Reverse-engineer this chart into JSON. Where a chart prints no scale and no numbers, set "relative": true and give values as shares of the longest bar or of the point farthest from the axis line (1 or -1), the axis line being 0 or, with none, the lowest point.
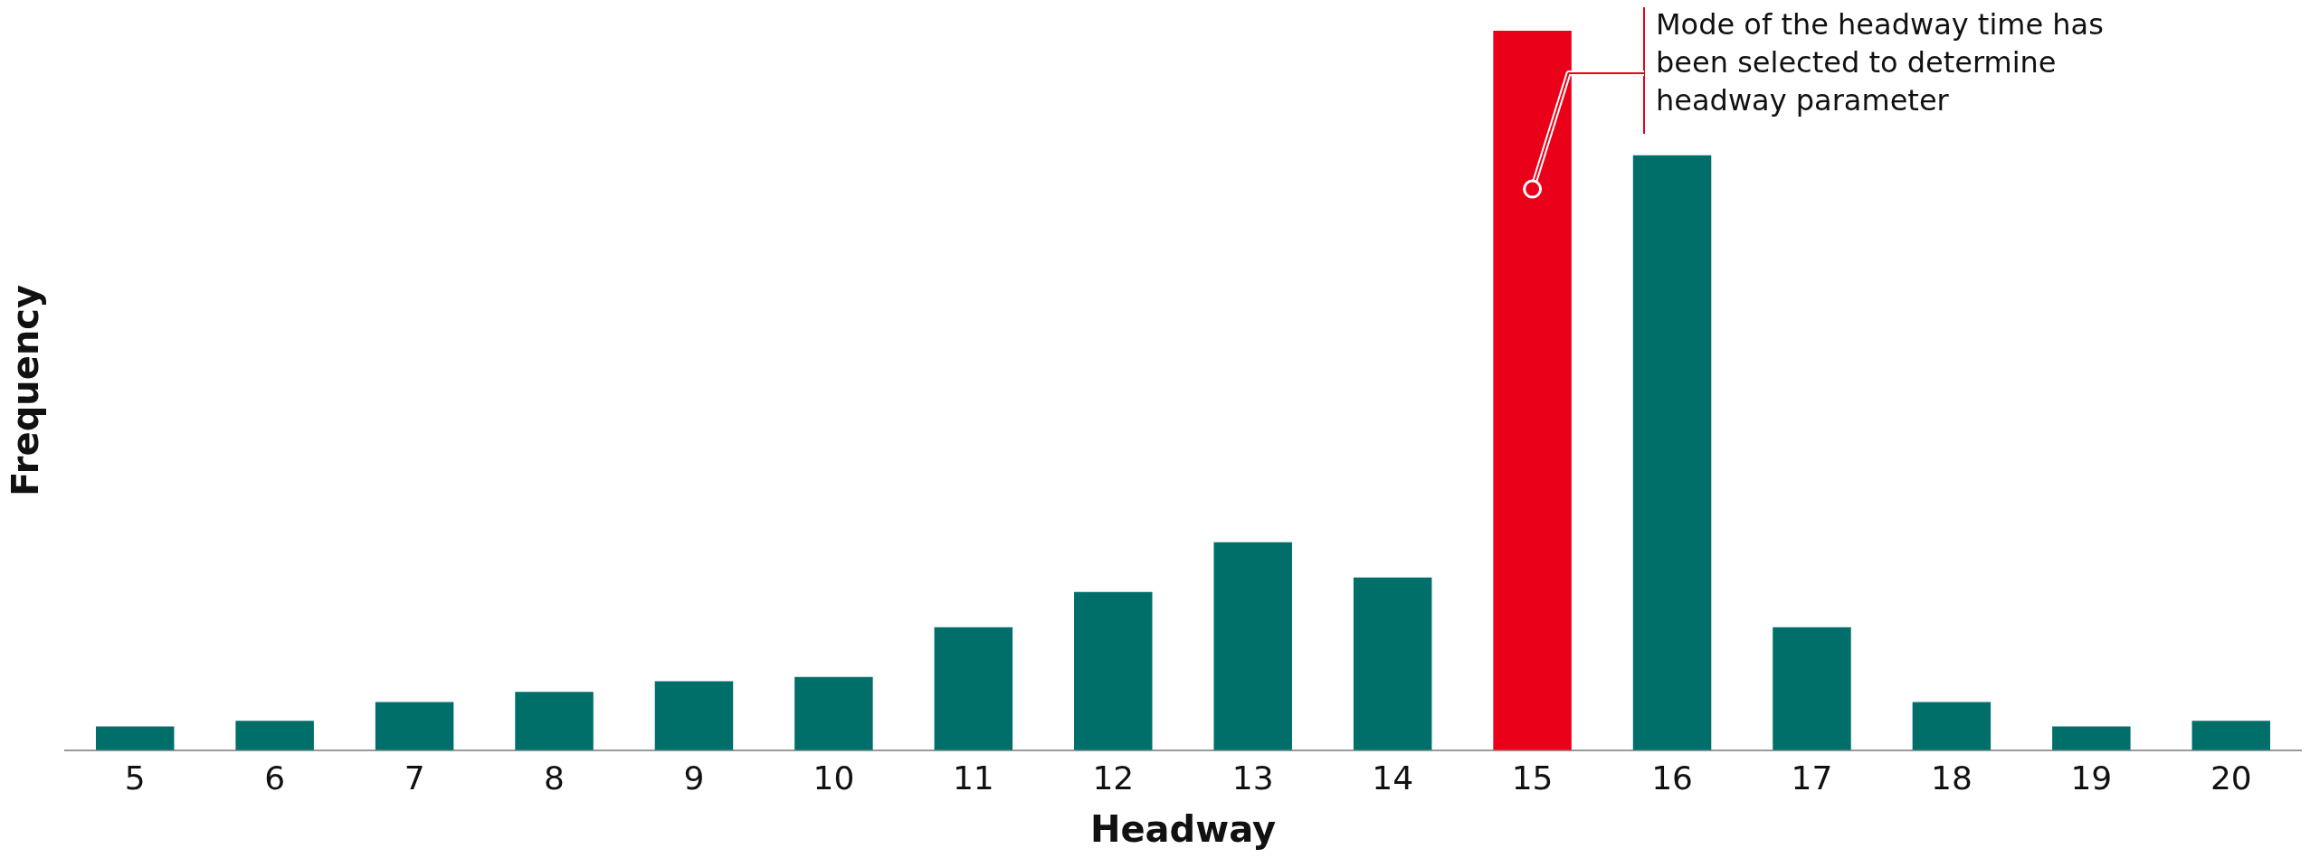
{
  "chart_data": {
    "type": "bar",
    "relative": true,
    "xlabel": "Headway",
    "ylabel": "Frequency",
    "categories": [
      "5",
      "6",
      "7",
      "8",
      "9",
      "10",
      "11",
      "12",
      "13",
      "14",
      "15",
      "16",
      "17",
      "18",
      "19",
      "20"
    ],
    "values": [
      0.033,
      0.041,
      0.067,
      0.081,
      0.096,
      0.102,
      0.171,
      0.22,
      0.289,
      0.24,
      1,
      0.827,
      0.171,
      0.067,
      0.033,
      0.041
    ],
    "colors": [
      "#006f6a",
      "#006f6a",
      "#006f6a",
      "#006f6a",
      "#006f6a",
      "#006f6a",
      "#006f6a",
      "#006f6a",
      "#006f6a",
      "#006f6a",
      "#eb0019",
      "#006f6a",
      "#006f6a",
      "#006f6a",
      "#006f6a",
      "#006f6a"
    ],
    "annotations": [
      {
        "text": "Mode of the headway time has been selected to determine headway parameter",
        "x": "15",
        "y": 0.78
      }
    ],
    "grid": false,
    "legend": false
  }
}
